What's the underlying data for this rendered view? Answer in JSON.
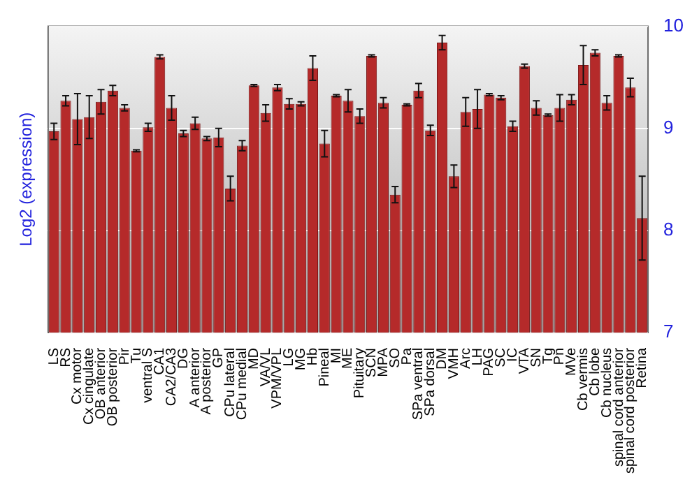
{
  "chart_data": {
    "type": "bar",
    "ylabel": "Log2 (expression)",
    "categories": [
      "LS",
      "RS",
      "Cx motor",
      "Cx cingulate",
      "OB anterior",
      "OB posterior",
      "Pir",
      "Tu",
      "ventral S",
      "CA1",
      "CA2/CA3",
      "DG",
      "A anterior",
      "A posterior",
      "GP",
      "CPu lateral",
      "CPu medial",
      "MD",
      "VA/VL",
      "VPM/VPL",
      "LG",
      "MG",
      "Hb",
      "Pineal",
      "MI",
      "ME",
      "Pituitary",
      "SCN",
      "MPA",
      "SO",
      "Pa",
      "SPa ventral",
      "SPa dorsal",
      "DM",
      "VMH",
      "Arc",
      "LH",
      "PAG",
      "SC",
      "IC",
      "VTA",
      "SN",
      "Tg",
      "Pn",
      "MVe",
      "Cb vermis",
      "Cb lobe",
      "Cb nucleus",
      "spinal cord anterior",
      "spinal cord posterior",
      "Retina"
    ],
    "values": [
      8.97,
      9.27,
      9.09,
      9.11,
      9.26,
      9.37,
      9.2,
      8.78,
      9.01,
      9.7,
      9.2,
      8.95,
      9.05,
      8.9,
      8.91,
      8.41,
      8.83,
      9.42,
      9.15,
      9.4,
      9.24,
      9.24,
      9.59,
      8.85,
      9.32,
      9.27,
      9.12,
      9.71,
      9.25,
      8.35,
      9.23,
      9.37,
      8.98,
      9.84,
      8.53,
      9.16,
      9.19,
      9.33,
      9.3,
      9.02,
      9.61,
      9.2,
      9.13,
      9.2,
      9.28,
      9.62,
      9.74,
      9.25,
      9.71,
      9.4,
      8.12
    ],
    "errors": [
      0.08,
      0.05,
      0.25,
      0.21,
      0.12,
      0.05,
      0.03,
      0.01,
      0.04,
      0.02,
      0.12,
      0.03,
      0.06,
      0.02,
      0.09,
      0.12,
      0.05,
      0.01,
      0.08,
      0.03,
      0.05,
      0.02,
      0.12,
      0.13,
      0.01,
      0.11,
      0.07,
      0.01,
      0.05,
      0.08,
      0.01,
      0.07,
      0.05,
      0.07,
      0.11,
      0.14,
      0.19,
      0.01,
      0.02,
      0.05,
      0.02,
      0.07,
      0.01,
      0.13,
      0.05,
      0.19,
      0.03,
      0.07,
      0.01,
      0.09,
      0.41
    ],
    "color": "#b52a2a",
    "ylim": [
      7,
      10
    ],
    "yticks": [
      7,
      8,
      9,
      10
    ],
    "grid": "y"
  }
}
